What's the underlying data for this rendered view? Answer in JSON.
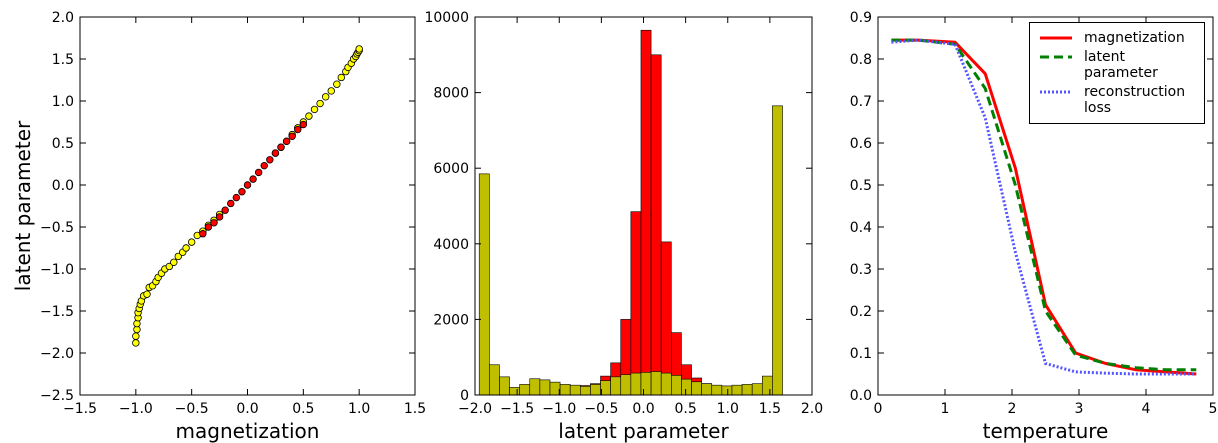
{
  "chart_data": [
    {
      "type": "scatter",
      "xlabel": "magnetization",
      "ylabel": "latent parameter",
      "xlim": [
        -1.5,
        1.5
      ],
      "xticks": [
        {
          "value": -1.5,
          "label": "−1.5"
        },
        {
          "value": -1.0,
          "label": "−1.0"
        },
        {
          "value": -0.5,
          "label": "−0.5"
        },
        {
          "value": 0,
          "label": "0.0"
        },
        0.5,
        {
          "value": 1,
          "label": "1.0"
        },
        1.5
      ],
      "ylim": [
        -2.5,
        2.0
      ],
      "yticks": [
        {
          "value": -2.5,
          "label": "−2.5"
        },
        {
          "value": -2.0,
          "label": "−2.0"
        },
        {
          "value": -1.5,
          "label": "−1.5"
        },
        {
          "value": -1.0,
          "label": "−1.0"
        },
        {
          "value": -0.5,
          "label": "−0.5"
        },
        {
          "value": 0,
          "label": "0.0"
        },
        0.5,
        {
          "value": 1,
          "label": "1.0"
        },
        1.5,
        {
          "value": 2,
          "label": "2.0"
        }
      ],
      "series": [
        {
          "color": "#ffff00",
          "x": [
            -1.0,
            -1.0,
            -0.99,
            -0.99,
            -0.98,
            -0.98,
            -0.97,
            -0.96,
            -0.95,
            -0.93,
            -0.9,
            -0.88,
            -0.85,
            -0.82,
            -0.8,
            -0.77,
            -0.74,
            -0.7,
            -0.66,
            -0.62,
            -0.58,
            -0.55,
            -0.5,
            -0.45,
            -0.4,
            -0.35,
            -0.3,
            -0.25,
            0.25,
            0.3,
            0.35,
            0.4,
            0.45,
            0.5,
            0.55,
            0.6,
            0.65,
            0.7,
            0.75,
            0.8,
            0.84,
            0.88,
            0.9,
            0.93,
            0.95,
            0.97,
            0.98,
            0.99,
            1.0,
            1.0
          ],
          "values": [
            -1.88,
            -1.8,
            -1.72,
            -1.65,
            -1.58,
            -1.52,
            -1.47,
            -1.42,
            -1.38,
            -1.32,
            -1.3,
            -1.22,
            -1.2,
            -1.15,
            -1.1,
            -1.05,
            -1.0,
            -0.97,
            -0.92,
            -0.85,
            -0.8,
            -0.75,
            -0.68,
            -0.6,
            -0.55,
            -0.48,
            -0.42,
            -0.35,
            0.38,
            0.45,
            0.52,
            0.6,
            0.68,
            0.75,
            0.82,
            0.9,
            0.97,
            1.05,
            1.12,
            1.2,
            1.28,
            1.35,
            1.4,
            1.45,
            1.5,
            1.53,
            1.56,
            1.58,
            1.6,
            1.62
          ]
        },
        {
          "color": "#ff0000",
          "x": [
            -0.4,
            -0.35,
            -0.3,
            -0.25,
            -0.2,
            -0.15,
            -0.1,
            -0.05,
            0.0,
            0.05,
            0.1,
            0.15,
            0.2,
            0.25,
            0.3,
            0.35,
            0.4,
            0.45,
            0.5
          ],
          "values": [
            -0.58,
            -0.5,
            -0.45,
            -0.38,
            -0.3,
            -0.22,
            -0.15,
            -0.08,
            0.0,
            0.07,
            0.15,
            0.23,
            0.3,
            0.38,
            0.45,
            0.52,
            0.58,
            0.66,
            0.72
          ]
        }
      ]
    },
    {
      "type": "histogram",
      "xlabel": "latent parameter",
      "xlim": [
        -2,
        2
      ],
      "xticks": [
        {
          "value": -2,
          "label": "−2.0"
        },
        {
          "value": -1.5,
          "label": "−1.5"
        },
        {
          "value": -1,
          "label": "−1.0"
        },
        {
          "value": -0.5,
          "label": "−0.5"
        },
        {
          "value": 0,
          "label": "0.0"
        },
        0.5,
        {
          "value": 1,
          "label": "1.0"
        },
        1.5,
        {
          "value": 2,
          "label": "2.0"
        }
      ],
      "ylim": [
        0,
        10000
      ],
      "yticks": [
        0,
        2000,
        4000,
        6000,
        8000,
        10000
      ],
      "bins": [
        -1.95,
        -1.83,
        -1.71,
        -1.59,
        -1.47,
        -1.35,
        -1.23,
        -1.11,
        -0.99,
        -0.87,
        -0.75,
        -0.63,
        -0.51,
        -0.39,
        -0.27,
        -0.15,
        -0.03,
        0.09,
        0.21,
        0.33,
        0.45,
        0.57,
        0.69,
        0.81,
        0.93,
        1.05,
        1.17,
        1.29,
        1.41,
        1.53,
        1.65
      ],
      "series": [
        {
          "color": "#ff0000",
          "values": [
            0,
            0,
            0,
            0,
            0,
            0,
            0,
            0,
            0,
            0,
            250,
            300,
            500,
            850,
            2000,
            4850,
            9650,
            9000,
            4050,
            1650,
            800,
            450,
            300,
            0,
            0,
            0,
            0,
            0,
            0,
            0
          ]
        },
        {
          "color": "#bfbf00",
          "values": [
            5850,
            800,
            480,
            200,
            280,
            430,
            400,
            340,
            280,
            260,
            230,
            280,
            380,
            480,
            540,
            580,
            600,
            620,
            580,
            520,
            420,
            350,
            300,
            260,
            240,
            260,
            280,
            300,
            500,
            7650
          ]
        }
      ]
    },
    {
      "type": "line",
      "xlabel": "temperature",
      "xlim": [
        0,
        5
      ],
      "xticks": [
        0,
        1,
        2,
        3,
        4,
        5
      ],
      "ylim": [
        0,
        0.9
      ],
      "yticks": [
        {
          "value": 0,
          "label": "0.0"
        },
        0.1,
        0.2,
        0.3,
        0.4,
        0.5,
        0.6,
        0.7,
        0.8,
        0.9
      ],
      "legend": "upper right",
      "x": [
        0.2,
        0.6,
        1.15,
        1.6,
        2.05,
        2.5,
        2.95,
        3.4,
        3.85,
        4.3,
        4.75
      ],
      "series": [
        {
          "name": "magnetization",
          "color": "#ff0000",
          "style": "solid",
          "values": [
            0.845,
            0.845,
            0.84,
            0.765,
            0.54,
            0.215,
            0.1,
            0.075,
            0.06,
            0.055,
            0.05
          ]
        },
        {
          "name": "latent parameter",
          "color": "#008000",
          "style": "dashed",
          "values": [
            0.845,
            0.845,
            0.835,
            0.73,
            0.5,
            0.2,
            0.095,
            0.075,
            0.065,
            0.06,
            0.06
          ]
        },
        {
          "name": "reconstruction loss",
          "color": "#5555ff",
          "style": "dotted",
          "values": [
            0.84,
            0.845,
            0.835,
            0.66,
            0.34,
            0.075,
            0.055,
            0.052,
            0.05,
            0.05,
            0.05
          ]
        }
      ]
    }
  ]
}
